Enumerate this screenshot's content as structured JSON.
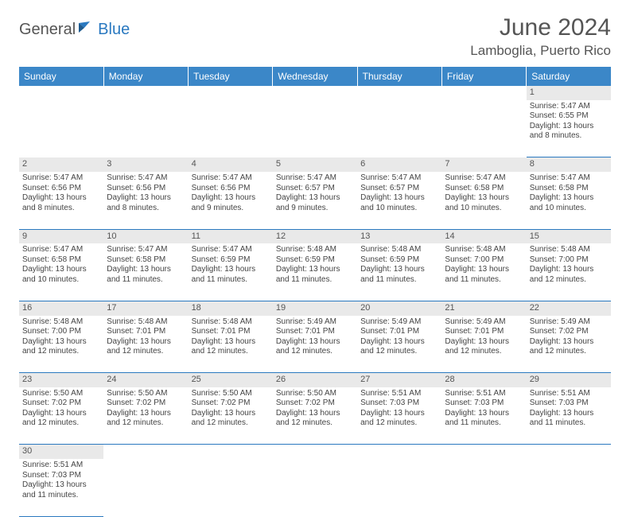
{
  "brand": {
    "part1": "General",
    "part2": "Blue"
  },
  "title": "June 2024",
  "location": "Lamboglia, Puerto Rico",
  "colors": {
    "header_bg": "#3b87c8",
    "header_text": "#ffffff",
    "daynum_bg": "#e9e9e9",
    "border": "#2a79c0",
    "text": "#444444",
    "brand_gray": "#555555",
    "brand_blue": "#2a79c0"
  },
  "weekdays": [
    "Sunday",
    "Monday",
    "Tuesday",
    "Wednesday",
    "Thursday",
    "Friday",
    "Saturday"
  ],
  "weeks": [
    {
      "nums": [
        "",
        "",
        "",
        "",
        "",
        "",
        "1"
      ],
      "cells": [
        null,
        null,
        null,
        null,
        null,
        null,
        {
          "sunrise": "5:47 AM",
          "sunset": "6:55 PM",
          "daylight": "13 hours and 8 minutes."
        }
      ]
    },
    {
      "nums": [
        "2",
        "3",
        "4",
        "5",
        "6",
        "7",
        "8"
      ],
      "cells": [
        {
          "sunrise": "5:47 AM",
          "sunset": "6:56 PM",
          "daylight": "13 hours and 8 minutes."
        },
        {
          "sunrise": "5:47 AM",
          "sunset": "6:56 PM",
          "daylight": "13 hours and 8 minutes."
        },
        {
          "sunrise": "5:47 AM",
          "sunset": "6:56 PM",
          "daylight": "13 hours and 9 minutes."
        },
        {
          "sunrise": "5:47 AM",
          "sunset": "6:57 PM",
          "daylight": "13 hours and 9 minutes."
        },
        {
          "sunrise": "5:47 AM",
          "sunset": "6:57 PM",
          "daylight": "13 hours and 10 minutes."
        },
        {
          "sunrise": "5:47 AM",
          "sunset": "6:58 PM",
          "daylight": "13 hours and 10 minutes."
        },
        {
          "sunrise": "5:47 AM",
          "sunset": "6:58 PM",
          "daylight": "13 hours and 10 minutes."
        }
      ]
    },
    {
      "nums": [
        "9",
        "10",
        "11",
        "12",
        "13",
        "14",
        "15"
      ],
      "cells": [
        {
          "sunrise": "5:47 AM",
          "sunset": "6:58 PM",
          "daylight": "13 hours and 10 minutes."
        },
        {
          "sunrise": "5:47 AM",
          "sunset": "6:58 PM",
          "daylight": "13 hours and 11 minutes."
        },
        {
          "sunrise": "5:47 AM",
          "sunset": "6:59 PM",
          "daylight": "13 hours and 11 minutes."
        },
        {
          "sunrise": "5:48 AM",
          "sunset": "6:59 PM",
          "daylight": "13 hours and 11 minutes."
        },
        {
          "sunrise": "5:48 AM",
          "sunset": "6:59 PM",
          "daylight": "13 hours and 11 minutes."
        },
        {
          "sunrise": "5:48 AM",
          "sunset": "7:00 PM",
          "daylight": "13 hours and 11 minutes."
        },
        {
          "sunrise": "5:48 AM",
          "sunset": "7:00 PM",
          "daylight": "13 hours and 12 minutes."
        }
      ]
    },
    {
      "nums": [
        "16",
        "17",
        "18",
        "19",
        "20",
        "21",
        "22"
      ],
      "cells": [
        {
          "sunrise": "5:48 AM",
          "sunset": "7:00 PM",
          "daylight": "13 hours and 12 minutes."
        },
        {
          "sunrise": "5:48 AM",
          "sunset": "7:01 PM",
          "daylight": "13 hours and 12 minutes."
        },
        {
          "sunrise": "5:48 AM",
          "sunset": "7:01 PM",
          "daylight": "13 hours and 12 minutes."
        },
        {
          "sunrise": "5:49 AM",
          "sunset": "7:01 PM",
          "daylight": "13 hours and 12 minutes."
        },
        {
          "sunrise": "5:49 AM",
          "sunset": "7:01 PM",
          "daylight": "13 hours and 12 minutes."
        },
        {
          "sunrise": "5:49 AM",
          "sunset": "7:01 PM",
          "daylight": "13 hours and 12 minutes."
        },
        {
          "sunrise": "5:49 AM",
          "sunset": "7:02 PM",
          "daylight": "13 hours and 12 minutes."
        }
      ]
    },
    {
      "nums": [
        "23",
        "24",
        "25",
        "26",
        "27",
        "28",
        "29"
      ],
      "cells": [
        {
          "sunrise": "5:50 AM",
          "sunset": "7:02 PM",
          "daylight": "13 hours and 12 minutes."
        },
        {
          "sunrise": "5:50 AM",
          "sunset": "7:02 PM",
          "daylight": "13 hours and 12 minutes."
        },
        {
          "sunrise": "5:50 AM",
          "sunset": "7:02 PM",
          "daylight": "13 hours and 12 minutes."
        },
        {
          "sunrise": "5:50 AM",
          "sunset": "7:02 PM",
          "daylight": "13 hours and 12 minutes."
        },
        {
          "sunrise": "5:51 AM",
          "sunset": "7:03 PM",
          "daylight": "13 hours and 12 minutes."
        },
        {
          "sunrise": "5:51 AM",
          "sunset": "7:03 PM",
          "daylight": "13 hours and 11 minutes."
        },
        {
          "sunrise": "5:51 AM",
          "sunset": "7:03 PM",
          "daylight": "13 hours and 11 minutes."
        }
      ]
    },
    {
      "nums": [
        "30",
        "",
        "",
        "",
        "",
        "",
        ""
      ],
      "cells": [
        {
          "sunrise": "5:51 AM",
          "sunset": "7:03 PM",
          "daylight": "13 hours and 11 minutes."
        },
        null,
        null,
        null,
        null,
        null,
        null
      ]
    }
  ]
}
